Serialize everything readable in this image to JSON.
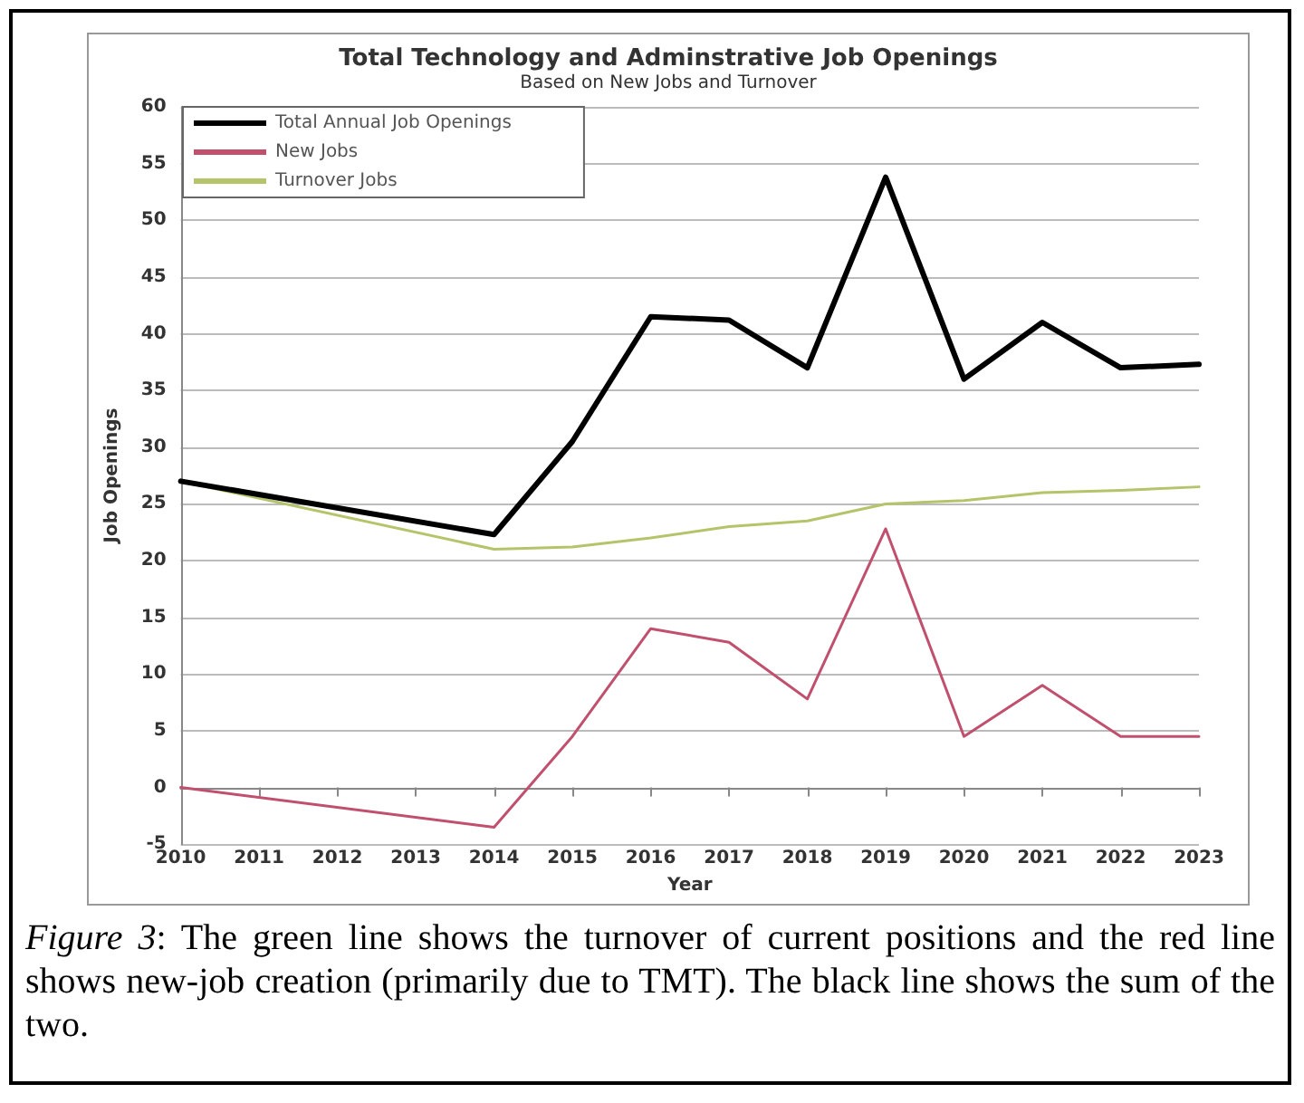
{
  "chart_data": {
    "type": "line",
    "title": "Total Technology and Adminstrative Job Openings",
    "subtitle": "Based on New Jobs and Turnover",
    "xlabel": "Year",
    "ylabel": "Job Openings",
    "x": [
      2010,
      2014,
      2015,
      2016,
      2017,
      2018,
      2019,
      2020,
      2021,
      2022,
      2023
    ],
    "series": [
      {
        "name": "Total Annual Job Openings",
        "color": "#000000",
        "values": [
          27,
          22.3,
          30.5,
          41.5,
          41.2,
          37,
          53.8,
          36,
          41,
          37,
          37.3
        ]
      },
      {
        "name": "New Jobs",
        "color": "#c0506e",
        "values": [
          0,
          -3.5,
          4.5,
          14,
          12.8,
          7.8,
          22.8,
          4.5,
          9,
          4.5,
          4.5
        ]
      },
      {
        "name": "Turnover Jobs",
        "color": "#b5c46a",
        "values": [
          27,
          21,
          21.2,
          22,
          23,
          23.5,
          25,
          25.3,
          26,
          26.2,
          26.5
        ]
      }
    ],
    "xlim": [
      2010,
      2023
    ],
    "xticks": [
      2010,
      2011,
      2012,
      2013,
      2014,
      2015,
      2016,
      2017,
      2018,
      2019,
      2020,
      2021,
      2022,
      2023
    ],
    "ylim": [
      -5,
      60
    ],
    "yticks": [
      -5,
      0,
      5,
      10,
      15,
      20,
      25,
      30,
      35,
      40,
      45,
      50,
      55,
      60
    ],
    "grid": "y",
    "legend": "top left",
    "marker": "none",
    "line_style": "solid",
    "annotations": [
      "Figure 3: The green line shows the turnover of current positions and the red line shows new-job creation (primarily due to TMT). The black line shows the sum of the two."
    ]
  }
}
